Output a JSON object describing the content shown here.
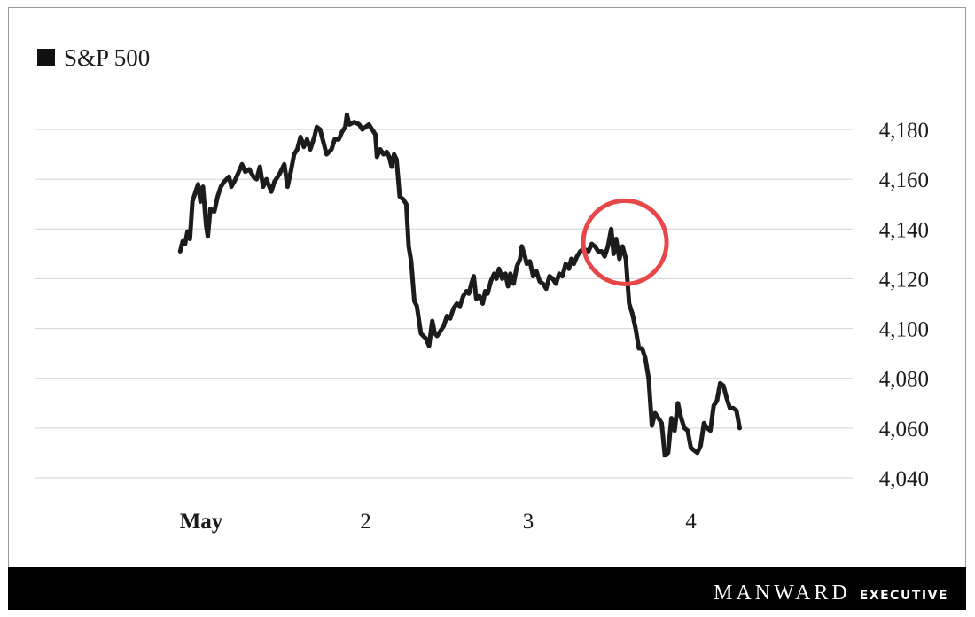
{
  "chart_data": {
    "type": "line",
    "legend_position": "top-left",
    "grid": true,
    "ylim": [
      4040,
      4190
    ],
    "yticks": [
      "4,180",
      "4,160",
      "4,140",
      "4,120",
      "4,100",
      "4,080",
      "4,060",
      "4,040"
    ],
    "ytick_values": [
      4180,
      4160,
      4140,
      4120,
      4100,
      4080,
      4060,
      4040
    ],
    "xticks": [
      {
        "label": "May",
        "x": 1,
        "bold": true
      },
      {
        "label": "2",
        "x": 2,
        "bold": false
      },
      {
        "label": "3",
        "x": 3,
        "bold": false
      },
      {
        "label": "4",
        "x": 4,
        "bold": false
      }
    ],
    "xlim": [
      0.86,
      5.0
    ],
    "series": [
      {
        "name": "S&P 500",
        "color": "#1c1c1c",
        "points": [
          [
            0.86,
            4131
          ],
          [
            0.875,
            4135
          ],
          [
            0.89,
            4134
          ],
          [
            0.905,
            4139
          ],
          [
            0.92,
            4136
          ],
          [
            0.935,
            4151
          ],
          [
            0.955,
            4155
          ],
          [
            0.97,
            4158
          ],
          [
            0.985,
            4151
          ],
          [
            1.0,
            4157
          ],
          [
            1.02,
            4141
          ],
          [
            1.03,
            4137
          ],
          [
            1.045,
            4148
          ],
          [
            1.07,
            4147
          ],
          [
            1.09,
            4153
          ],
          [
            1.11,
            4157
          ],
          [
            1.13,
            4159
          ],
          [
            1.16,
            4161
          ],
          [
            1.175,
            4157
          ],
          [
            1.2,
            4160
          ],
          [
            1.22,
            4163
          ],
          [
            1.24,
            4166
          ],
          [
            1.26,
            4163
          ],
          [
            1.285,
            4164
          ],
          [
            1.31,
            4161
          ],
          [
            1.33,
            4160
          ],
          [
            1.35,
            4165
          ],
          [
            1.37,
            4157
          ],
          [
            1.39,
            4160
          ],
          [
            1.42,
            4155
          ],
          [
            1.44,
            4159
          ],
          [
            1.47,
            4162
          ],
          [
            1.5,
            4166
          ],
          [
            1.52,
            4157
          ],
          [
            1.54,
            4163
          ],
          [
            1.56,
            4170
          ],
          [
            1.58,
            4172
          ],
          [
            1.6,
            4177
          ],
          [
            1.62,
            4173
          ],
          [
            1.64,
            4176
          ],
          [
            1.66,
            4172
          ],
          [
            1.685,
            4177
          ],
          [
            1.7,
            4181
          ],
          [
            1.72,
            4180
          ],
          [
            1.74,
            4175
          ],
          [
            1.76,
            4170
          ],
          [
            1.79,
            4172
          ],
          [
            1.81,
            4176
          ],
          [
            1.835,
            4176
          ],
          [
            1.855,
            4179
          ],
          [
            1.875,
            4181
          ],
          [
            1.885,
            4186
          ],
          [
            1.9,
            4182
          ],
          [
            1.93,
            4183
          ],
          [
            1.96,
            4182
          ],
          [
            1.98,
            4180
          ],
          [
            2.0,
            4181
          ],
          [
            2.02,
            4182
          ],
          [
            2.04,
            4180
          ],
          [
            2.06,
            4178
          ],
          [
            2.07,
            4169
          ],
          [
            2.09,
            4172
          ],
          [
            2.11,
            4170
          ],
          [
            2.13,
            4171
          ],
          [
            2.145,
            4169
          ],
          [
            2.16,
            4165
          ],
          [
            2.175,
            4170
          ],
          [
            2.19,
            4168
          ],
          [
            2.21,
            4153
          ],
          [
            2.23,
            4152
          ],
          [
            2.25,
            4150
          ],
          [
            2.265,
            4133
          ],
          [
            2.28,
            4127
          ],
          [
            2.3,
            4111
          ],
          [
            2.315,
            4109
          ],
          [
            2.34,
            4098
          ],
          [
            2.37,
            4096
          ],
          [
            2.39,
            4093
          ],
          [
            2.41,
            4103
          ],
          [
            2.425,
            4098
          ],
          [
            2.44,
            4097
          ],
          [
            2.46,
            4099
          ],
          [
            2.48,
            4101
          ],
          [
            2.5,
            4105
          ],
          [
            2.52,
            4104
          ],
          [
            2.54,
            4108
          ],
          [
            2.56,
            4110
          ],
          [
            2.58,
            4109
          ],
          [
            2.6,
            4113
          ],
          [
            2.62,
            4115
          ],
          [
            2.635,
            4114
          ],
          [
            2.65,
            4118
          ],
          [
            2.665,
            4121
          ],
          [
            2.68,
            4112
          ],
          [
            2.7,
            4113
          ],
          [
            2.72,
            4110
          ],
          [
            2.735,
            4115
          ],
          [
            2.75,
            4114
          ],
          [
            2.77,
            4119
          ],
          [
            2.79,
            4122
          ],
          [
            2.805,
            4120
          ],
          [
            2.82,
            4124
          ],
          [
            2.84,
            4120
          ],
          [
            2.86,
            4122
          ],
          [
            2.875,
            4117
          ],
          [
            2.89,
            4122
          ],
          [
            2.91,
            4118
          ],
          [
            2.93,
            4125
          ],
          [
            2.95,
            4128
          ],
          [
            2.96,
            4133
          ],
          [
            2.98,
            4129
          ],
          [
            2.99,
            4126
          ],
          [
            3.01,
            4127
          ],
          [
            3.03,
            4121
          ],
          [
            3.05,
            4123
          ],
          [
            3.07,
            4119
          ],
          [
            3.09,
            4118
          ],
          [
            3.11,
            4116
          ],
          [
            3.13,
            4121
          ],
          [
            3.15,
            4120
          ],
          [
            3.17,
            4118
          ],
          [
            3.19,
            4122
          ],
          [
            3.21,
            4121
          ],
          [
            3.23,
            4126
          ],
          [
            3.25,
            4124
          ],
          [
            3.265,
            4128
          ],
          [
            3.28,
            4126
          ],
          [
            3.3,
            4129
          ],
          [
            3.32,
            4131
          ],
          [
            3.34,
            4132
          ],
          [
            3.37,
            4131
          ],
          [
            3.39,
            4134
          ],
          [
            3.41,
            4133
          ],
          [
            3.43,
            4131
          ],
          [
            3.45,
            4131
          ],
          [
            3.47,
            4129
          ],
          [
            3.49,
            4133
          ],
          [
            3.51,
            4140
          ],
          [
            3.525,
            4130
          ],
          [
            3.54,
            4136
          ],
          [
            3.56,
            4128
          ],
          [
            3.58,
            4133
          ],
          [
            3.6,
            4128
          ],
          [
            3.62,
            4110
          ],
          [
            3.64,
            4106
          ],
          [
            3.66,
            4100
          ],
          [
            3.68,
            4092
          ],
          [
            3.7,
            4092
          ],
          [
            3.72,
            4088
          ],
          [
            3.74,
            4080
          ],
          [
            3.76,
            4061
          ],
          [
            3.78,
            4066
          ],
          [
            3.8,
            4064
          ],
          [
            3.82,
            4062
          ],
          [
            3.84,
            4049
          ],
          [
            3.86,
            4050
          ],
          [
            3.88,
            4064
          ],
          [
            3.9,
            4059
          ],
          [
            3.92,
            4070
          ],
          [
            3.94,
            4064
          ],
          [
            3.96,
            4060
          ],
          [
            3.98,
            4059
          ],
          [
            4.0,
            4052
          ],
          [
            4.02,
            4051
          ],
          [
            4.04,
            4050
          ],
          [
            4.06,
            4053
          ],
          [
            4.08,
            4062
          ],
          [
            4.1,
            4060
          ],
          [
            4.12,
            4059
          ],
          [
            4.14,
            4069
          ],
          [
            4.16,
            4071
          ],
          [
            4.18,
            4078
          ],
          [
            4.2,
            4077
          ],
          [
            4.22,
            4072
          ],
          [
            4.24,
            4068
          ],
          [
            4.26,
            4068
          ],
          [
            4.28,
            4067
          ],
          [
            4.3,
            4060
          ]
        ]
      }
    ],
    "annotation": {
      "type": "circle",
      "color": "#e8474a",
      "center": [
        3.54,
        4135
      ],
      "label": ""
    }
  },
  "brand": {
    "name": "MANWARD",
    "sub": "EXECUTIVE"
  }
}
